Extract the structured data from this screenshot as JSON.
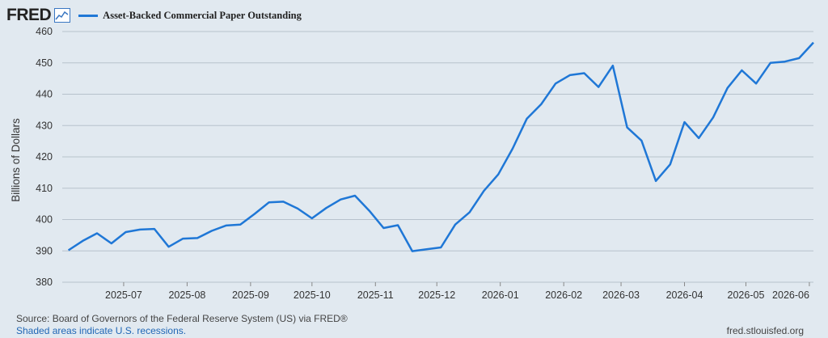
{
  "header": {
    "logo_text": "FRED",
    "logo_icon": "line-chart-icon",
    "series_color": "#1f77d6"
  },
  "footer": {
    "source": "Source: Board of Governors of the Federal Reserve System (US) via FRED®",
    "shaded_note": "Shaded areas indicate U.S. recessions.",
    "site": "fred.stlouisfed.org"
  },
  "chart_data": {
    "type": "line",
    "ylabel": "Billions of Dollars",
    "ylim": [
      380,
      460
    ],
    "yticks": [
      380,
      390,
      400,
      410,
      420,
      430,
      440,
      450,
      460
    ],
    "xlim": [
      "2025-06-01",
      "2026-06-03"
    ],
    "xticks": [
      "2025-07",
      "2025-08",
      "2025-09",
      "2025-10",
      "2025-11",
      "2025-12",
      "2026-01",
      "2026-02",
      "2026-03",
      "2026-04",
      "2026-05",
      "2026-06"
    ],
    "grid": "horizontal",
    "legend": "top-left",
    "series": [
      {
        "name": "Asset-Backed Commercial Paper Outstanding",
        "points": [
          [
            "2025-06-04",
            390.2
          ],
          [
            "2025-06-11",
            393.2
          ],
          [
            "2025-06-18",
            395.6
          ],
          [
            "2025-06-25",
            392.4
          ],
          [
            "2025-07-02",
            396.0
          ],
          [
            "2025-07-09",
            396.8
          ],
          [
            "2025-07-16",
            397.0
          ],
          [
            "2025-07-23",
            391.3
          ],
          [
            "2025-07-30",
            393.9
          ],
          [
            "2025-08-06",
            394.1
          ],
          [
            "2025-08-13",
            396.4
          ],
          [
            "2025-08-20",
            398.1
          ],
          [
            "2025-08-27",
            398.4
          ],
          [
            "2025-09-03",
            401.8
          ],
          [
            "2025-09-10",
            405.5
          ],
          [
            "2025-09-17",
            405.7
          ],
          [
            "2025-09-24",
            403.5
          ],
          [
            "2025-10-01",
            400.4
          ],
          [
            "2025-10-08",
            403.7
          ],
          [
            "2025-10-15",
            406.4
          ],
          [
            "2025-10-22",
            407.6
          ],
          [
            "2025-10-29",
            402.8
          ],
          [
            "2025-11-05",
            397.3
          ],
          [
            "2025-11-12",
            398.2
          ],
          [
            "2025-11-19",
            389.9
          ],
          [
            "2025-11-26",
            390.5
          ],
          [
            "2025-12-03",
            391.1
          ],
          [
            "2025-12-10",
            398.4
          ],
          [
            "2025-12-17",
            402.3
          ],
          [
            "2025-12-24",
            409.2
          ],
          [
            "2025-12-31",
            414.4
          ],
          [
            "2026-01-07",
            422.6
          ],
          [
            "2026-01-14",
            432.2
          ],
          [
            "2026-01-21",
            436.8
          ],
          [
            "2026-01-28",
            443.4
          ],
          [
            "2026-02-04",
            446.1
          ],
          [
            "2026-02-11",
            446.7
          ],
          [
            "2026-02-18",
            442.3
          ],
          [
            "2026-02-25",
            449.1
          ],
          [
            "2026-03-04",
            429.4
          ],
          [
            "2026-03-11",
            425.2
          ],
          [
            "2026-03-18",
            412.3
          ],
          [
            "2026-03-25",
            417.6
          ],
          [
            "2026-04-01",
            431.1
          ],
          [
            "2026-04-08",
            426.0
          ],
          [
            "2026-04-15",
            432.6
          ],
          [
            "2026-04-22",
            442.0
          ],
          [
            "2026-04-29",
            447.6
          ],
          [
            "2026-05-06",
            443.4
          ],
          [
            "2026-05-13",
            450.0
          ],
          [
            "2026-05-20",
            450.4
          ],
          [
            "2026-05-27",
            451.5
          ],
          [
            "2026-06-03",
            456.5
          ]
        ]
      }
    ]
  }
}
